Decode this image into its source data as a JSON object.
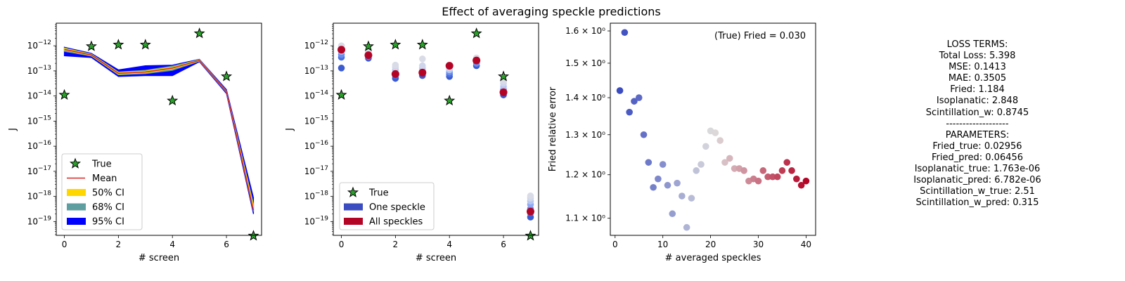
{
  "figure_title": "Effect of averaging speckle predictions",
  "chart_data": [
    {
      "type": "line",
      "xlabel": "# screen",
      "ylabel": "J",
      "yscale": "log",
      "xlim": [
        -0.3,
        7.3
      ],
      "ylim_exp": [
        -19.55,
        -11.1
      ],
      "xticks": [
        0,
        2,
        4,
        6
      ],
      "yticks_exp": [
        -12,
        -13,
        -14,
        -15,
        -16,
        -17,
        -18,
        -19
      ],
      "grid": false,
      "legend_position": "lower-left",
      "x": [
        0,
        1,
        2,
        3,
        4,
        5,
        6,
        7
      ],
      "true_values": [
        1.1e-14,
        9.5e-13,
        1.1e-12,
        1.1e-12,
        6.5e-15,
        3.1e-12,
        6e-14,
        2.7e-20
      ],
      "mean": [
        7.2e-13,
        4.3e-13,
        8e-14,
        9e-14,
        1.3e-13,
        2.6e-13,
        1.5e-14,
        2.8e-19
      ],
      "ci50": {
        "low": [
          6.8e-13,
          4.1e-13,
          7.5e-14,
          8.4e-14,
          1.2e-13,
          2.5e-13,
          1.45e-14,
          3e-19
        ],
        "high": [
          7.8e-13,
          4.5e-13,
          8.6e-14,
          9.8e-14,
          1.4e-13,
          2.7e-13,
          1.55e-14,
          4.2e-19
        ]
      },
      "ci68": {
        "low": [
          6e-13,
          3.9e-13,
          7e-14,
          7.8e-14,
          1.05e-13,
          2.45e-13,
          1.4e-14,
          2.5e-19
        ],
        "high": [
          8.2e-13,
          4.7e-13,
          9e-14,
          1.05e-13,
          1.55e-13,
          2.8e-13,
          1.6e-14,
          5e-19
        ]
      },
      "ci95": {
        "low": [
          4e-13,
          3.4e-13,
          6e-14,
          6.5e-14,
          6.5e-14,
          2.3e-13,
          1.25e-14,
          2e-19
        ],
        "high": [
          8.8e-13,
          5e-13,
          1.1e-13,
          1.6e-13,
          1.7e-13,
          2.9e-13,
          1.8e-14,
          9e-19
        ]
      },
      "legend": [
        "True",
        "Mean",
        "50% CI",
        "68% CI",
        "95% CI"
      ],
      "colors": {
        "true": "#2ca02c",
        "mean": "#d62728",
        "ci50": "#ffd700",
        "ci68": "#5f9ea0",
        "ci95": "#0000ff"
      }
    },
    {
      "type": "scatter",
      "xlabel": "# screen",
      "ylabel": "J",
      "yscale": "log",
      "xlim": [
        -0.3,
        7.3
      ],
      "ylim_exp": [
        -19.55,
        -11.1
      ],
      "xticks": [
        0,
        2,
        4,
        6
      ],
      "yticks_exp": [
        -12,
        -13,
        -14,
        -15,
        -16,
        -17,
        -18,
        -19
      ],
      "grid": false,
      "legend_position": "lower-left",
      "x": [
        0,
        1,
        2,
        3,
        4,
        5,
        6,
        7
      ],
      "true_values": [
        1.1e-14,
        9.5e-13,
        1.1e-12,
        1.1e-12,
        6.5e-15,
        3.1e-12,
        6e-14,
        2.7e-20
      ],
      "one_speckle": [
        [
          1.3e-13,
          3.5e-13,
          4.5e-13,
          6e-13,
          8e-13,
          1e-12
        ],
        [
          3.2e-13,
          3.8e-13,
          4.4e-13,
          5e-13,
          5.8e-13
        ],
        [
          5e-14,
          6.5e-14,
          8e-14,
          1.1e-13,
          1.4e-13,
          1.7e-13
        ],
        [
          6.5e-14,
          8e-14,
          1e-13,
          1.3e-13,
          1.6e-13,
          3e-13
        ],
        [
          6e-14,
          7.5e-14,
          9e-14,
          1.1e-13,
          1.3e-13,
          1.6e-13
        ],
        [
          1.6e-13,
          2e-13,
          2.4e-13,
          2.8e-13,
          3.3e-13
        ],
        [
          1.1e-14,
          1.4e-14,
          1.8e-14,
          2.4e-14,
          3.2e-14,
          4e-14
        ],
        [
          1.5e-19,
          2.2e-19,
          3.2e-19,
          4.8e-19,
          6.5e-19,
          8.5e-19,
          1.05e-18
        ]
      ],
      "all_speckles": [
        7e-13,
        4.2e-13,
        7.5e-14,
        8.5e-14,
        1.6e-13,
        2.6e-13,
        1.4e-14,
        2.5e-19
      ],
      "legend": [
        "True",
        "One speckle",
        "All speckles"
      ],
      "colors": {
        "true": "#2ca02c",
        "one": "#4a6fe0",
        "all": "#b40426"
      }
    },
    {
      "type": "scatter",
      "xlabel": "# averaged speckles",
      "ylabel": "Fried relative error",
      "yscale": "log",
      "xlim": [
        -1,
        42
      ],
      "ylim": [
        1.063,
        1.625
      ],
      "xticks": [
        0,
        10,
        20,
        30,
        40
      ],
      "yticks": [
        1.1,
        1.2,
        1.3,
        1.4,
        1.5,
        1.6
      ],
      "ytick_labels": [
        "1.1 × 10⁰",
        "1.2 × 10⁰",
        "1.3 × 10⁰",
        "1.4 × 10⁰",
        "1.5 × 10⁰",
        "1.6 × 10⁰"
      ],
      "grid": false,
      "annotation": "(True) Fried = 0.030",
      "x": [
        1,
        2,
        3,
        4,
        5,
        6,
        7,
        8,
        9,
        10,
        11,
        12,
        13,
        14,
        15,
        16,
        17,
        18,
        19,
        20,
        21,
        22,
        23,
        24,
        25,
        26,
        27,
        28,
        29,
        30,
        31,
        32,
        33,
        34,
        35,
        36,
        37,
        38,
        39,
        40
      ],
      "y": [
        1.42,
        1.595,
        1.36,
        1.39,
        1.4,
        1.3,
        1.23,
        1.17,
        1.19,
        1.225,
        1.175,
        1.11,
        1.18,
        1.15,
        1.08,
        1.145,
        1.21,
        1.225,
        1.27,
        1.31,
        1.305,
        1.285,
        1.23,
        1.24,
        1.215,
        1.215,
        1.21,
        1.185,
        1.19,
        1.185,
        1.21,
        1.195,
        1.195,
        1.195,
        1.21,
        1.23,
        1.21,
        1.19,
        1.175,
        1.185
      ],
      "colormap": "coolwarm"
    }
  ],
  "loss_panel": {
    "lines": [
      "LOSS TERMS:",
      "Total Loss: 5.398",
      "MSE: 0.1413",
      "MAE: 0.3505",
      "Fried: 1.184",
      "Isoplanatic: 2.848",
      "Scintillation_w: 0.8745",
      "-------------------",
      "PARAMETERS:",
      "Fried_true: 0.02956",
      "Fried_pred: 0.06456",
      "Isoplanatic_true: 1.763e-06",
      "Isoplanatic_pred: 6.782e-06",
      "Scintillation_w_true: 2.51",
      "Scintillation_w_pred: 0.315"
    ]
  }
}
